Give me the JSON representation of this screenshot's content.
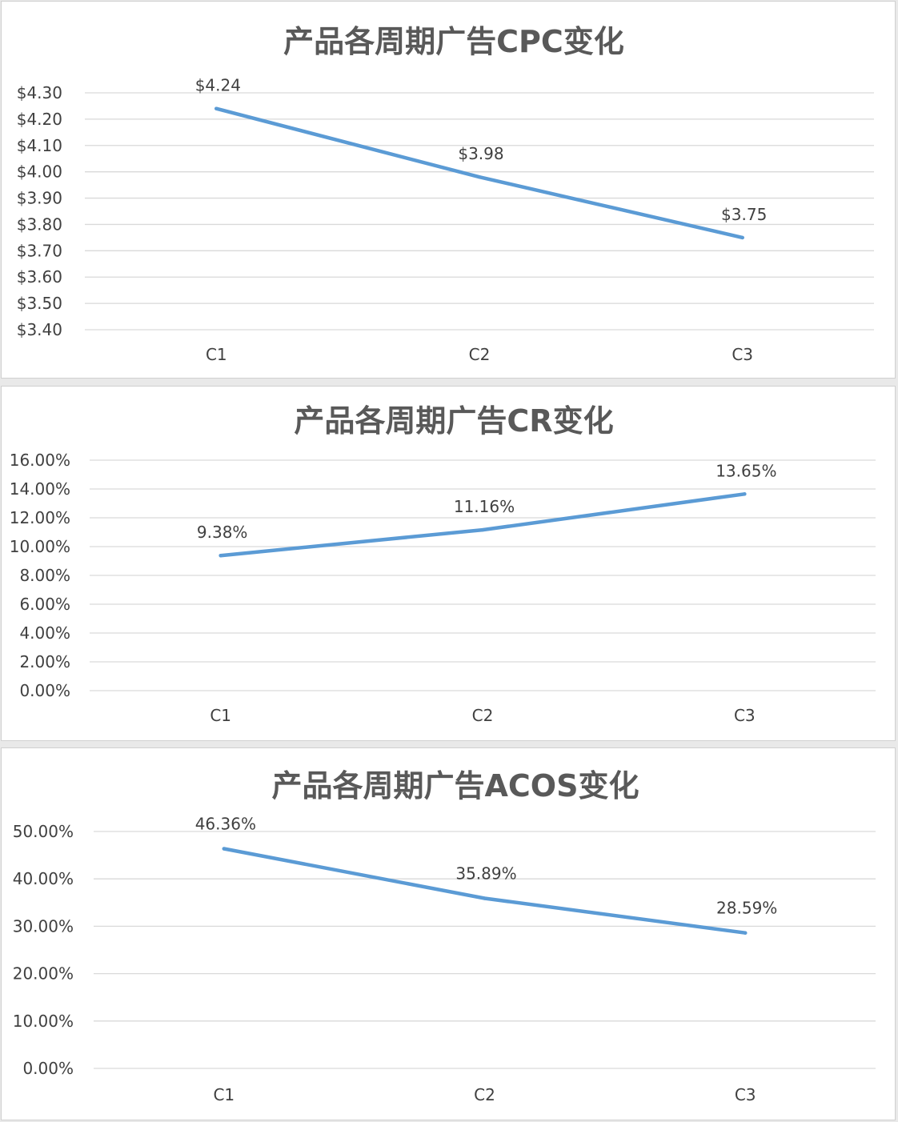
{
  "colors": {
    "series": "#5b9bd5",
    "gridline": "#d9d9d9",
    "text": "#404040",
    "title": "#595959"
  },
  "chart_data": [
    {
      "type": "line",
      "title": "产品各周期广告CPC变化",
      "categories": [
        "C1",
        "C2",
        "C3"
      ],
      "series": [
        {
          "values": [
            4.24,
            3.98,
            3.75
          ]
        }
      ],
      "data_labels": [
        "$4.24",
        "$3.98",
        "$3.75"
      ],
      "y_tick_labels": [
        "$3.40",
        "$3.50",
        "$3.60",
        "$3.70",
        "$3.80",
        "$3.90",
        "$4.00",
        "$4.10",
        "$4.20",
        "$4.30"
      ],
      "ylim": [
        3.4,
        4.3
      ],
      "grid": true,
      "legend": "none"
    },
    {
      "type": "line",
      "title": "产品各周期广告CR变化",
      "categories": [
        "C1",
        "C2",
        "C3"
      ],
      "series": [
        {
          "values": [
            9.38,
            11.16,
            13.65
          ]
        }
      ],
      "data_labels": [
        "9.38%",
        "11.16%",
        "13.65%"
      ],
      "y_tick_labels": [
        "0.00%",
        "2.00%",
        "4.00%",
        "6.00%",
        "8.00%",
        "10.00%",
        "12.00%",
        "14.00%",
        "16.00%"
      ],
      "ylim": [
        0,
        16
      ],
      "grid": true,
      "legend": "none"
    },
    {
      "type": "line",
      "title": "产品各周期广告ACOS变化",
      "categories": [
        "C1",
        "C2",
        "C3"
      ],
      "series": [
        {
          "values": [
            46.36,
            35.89,
            28.59
          ]
        }
      ],
      "data_labels": [
        "46.36%",
        "35.89%",
        "28.59%"
      ],
      "y_tick_labels": [
        "0.00%",
        "10.00%",
        "20.00%",
        "30.00%",
        "40.00%",
        "50.00%"
      ],
      "ylim": [
        0,
        50
      ],
      "grid": true,
      "legend": "none"
    }
  ]
}
